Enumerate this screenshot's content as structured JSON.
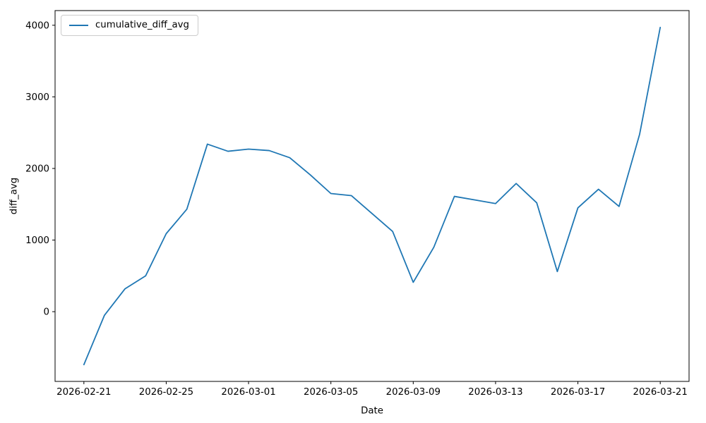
{
  "chart_data": {
    "type": "line",
    "title": "",
    "xlabel": "Date",
    "ylabel": "diff_avg",
    "legend_label": "cumulative_diff_avg",
    "legend_position": "upper left",
    "line_color": "#1f77b4",
    "grid": false,
    "x": [
      "2026-02-21",
      "2026-02-22",
      "2026-02-23",
      "2026-02-24",
      "2026-02-25",
      "2026-02-26",
      "2026-02-27",
      "2026-02-28",
      "2026-03-01",
      "2026-03-02",
      "2026-03-03",
      "2026-03-04",
      "2026-03-05",
      "2026-03-06",
      "2026-03-07",
      "2026-03-08",
      "2026-03-09",
      "2026-03-10",
      "2026-03-11",
      "2026-03-12",
      "2026-03-13",
      "2026-03-14",
      "2026-03-15",
      "2026-03-16",
      "2026-03-17",
      "2026-03-18",
      "2026-03-19",
      "2026-03-20",
      "2026-03-21"
    ],
    "values": [
      -740,
      -50,
      320,
      500,
      1090,
      1430,
      2340,
      2240,
      2270,
      2250,
      2150,
      1910,
      1650,
      1620,
      1370,
      1120,
      410,
      900,
      1610,
      1560,
      1510,
      1790,
      1520,
      560,
      1450,
      1710,
      1470,
      2480,
      3970
    ],
    "x_tick_indices": [
      0,
      4,
      8,
      12,
      16,
      20,
      24,
      28
    ],
    "x_tick_labels": [
      "2026-02-21",
      "2026-02-25",
      "2026-03-01",
      "2026-03-05",
      "2026-03-09",
      "2026-03-13",
      "2026-03-17",
      "2026-03-21"
    ],
    "y_ticks": [
      0,
      1000,
      2000,
      3000,
      4000
    ],
    "y_tick_labels": [
      "0",
      "1000",
      "2000",
      "3000",
      "4000"
    ],
    "xlim_day_index": [
      -1.4,
      29.4
    ],
    "ylim": [
      -974,
      4205
    ]
  }
}
